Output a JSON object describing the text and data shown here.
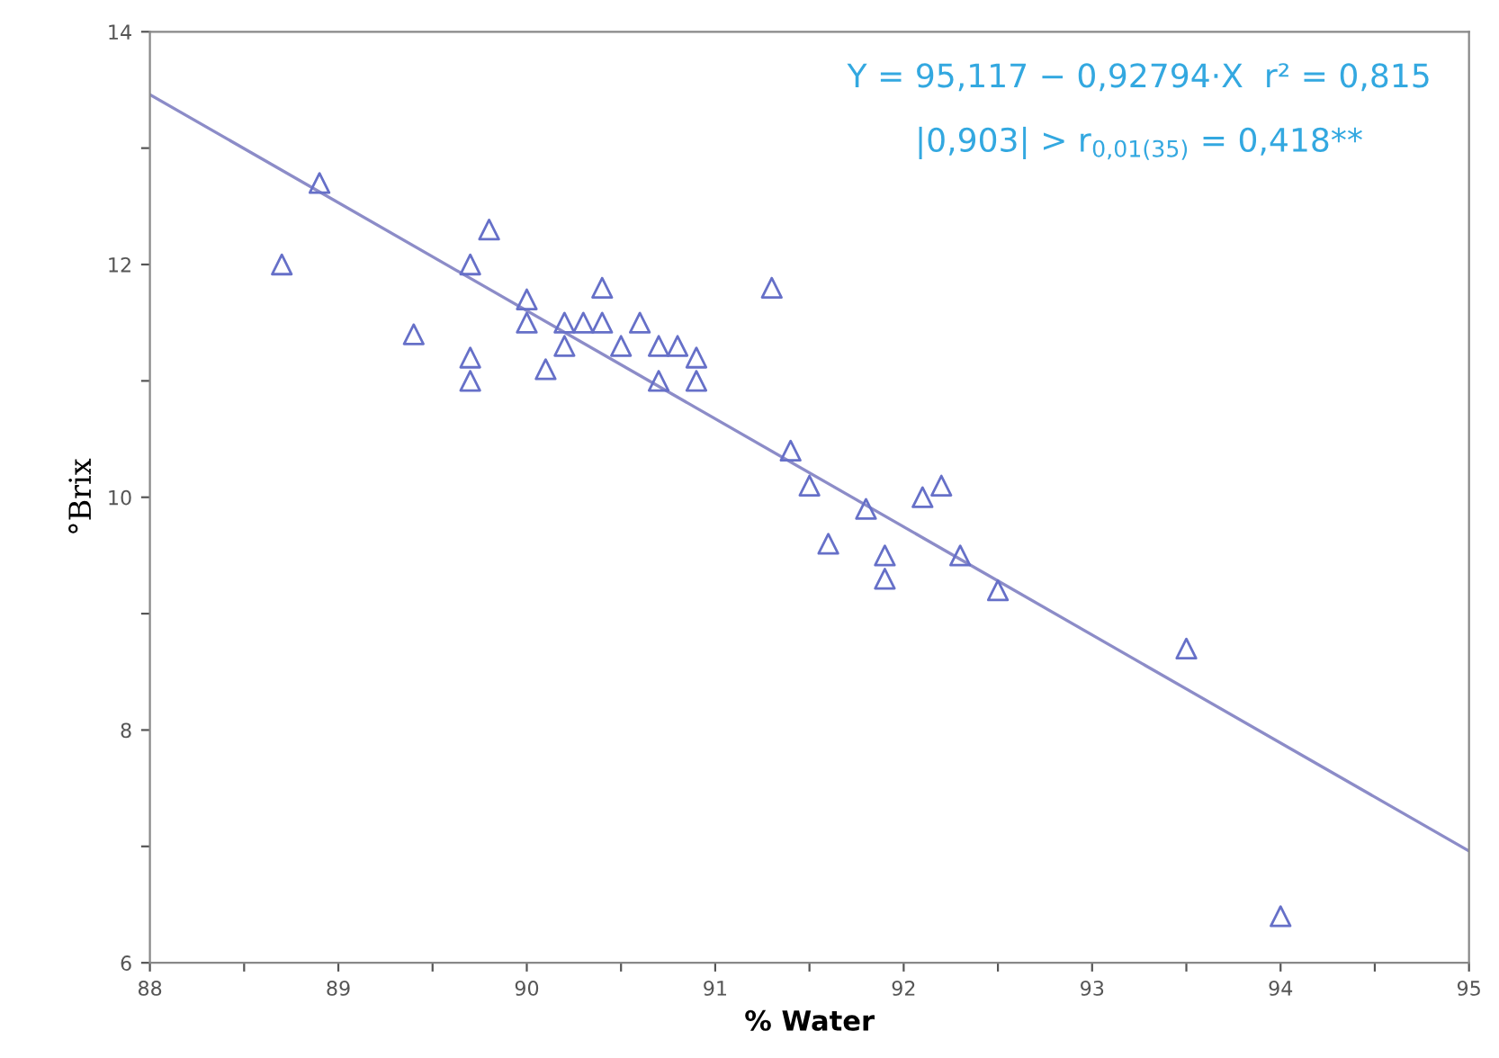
{
  "chart_data": {
    "type": "scatter",
    "xlabel": "% Water",
    "ylabel": "°Brix",
    "xlim": [
      88,
      95
    ],
    "ylim": [
      6,
      14
    ],
    "xticks": [
      88,
      {
        "value": 88.5,
        "label": null
      },
      89,
      {
        "value": 89.5,
        "label": null
      },
      90,
      {
        "value": 90.5,
        "label": null
      },
      91,
      {
        "value": 91.5,
        "label": null
      },
      92,
      {
        "value": 92.5,
        "label": null
      },
      93,
      {
        "value": 93.5,
        "label": null
      },
      94,
      {
        "value": 94.5,
        "label": null
      },
      95
    ],
    "yticks": [
      6,
      {
        "value": 7,
        "label": null
      },
      8,
      {
        "value": 9,
        "label": null
      },
      10,
      {
        "value": 11,
        "label": null
      },
      12,
      {
        "value": 13,
        "label": null
      },
      14
    ],
    "grid": false,
    "legend": false,
    "marker": "triangle",
    "annotations": [
      "Y = 95,117 − 0,92794·X  r² = 0,815",
      "|0,903| > r$_{0,01(35)}$ = 0,418**"
    ],
    "series": [
      {
        "color": "#6670c8",
        "x": [
          88.7,
          88.9,
          89.4,
          89.7,
          89.7,
          89.7,
          89.8,
          90.0,
          90.0,
          90.1,
          90.2,
          90.2,
          90.3,
          90.4,
          90.4,
          90.5,
          90.6,
          90.7,
          90.7,
          90.8,
          90.9,
          90.9,
          91.3,
          91.4,
          91.5,
          91.6,
          91.8,
          91.9,
          91.9,
          92.1,
          92.2,
          92.3,
          92.5,
          93.5,
          94.0
        ],
        "values": [
          12.0,
          12.7,
          11.4,
          12.0,
          11.2,
          11.0,
          12.3,
          11.7,
          11.5,
          11.1,
          11.5,
          11.3,
          11.5,
          11.8,
          11.5,
          11.3,
          11.5,
          11.3,
          11.0,
          11.3,
          11.2,
          11.0,
          11.8,
          10.4,
          10.1,
          9.6,
          9.9,
          9.5,
          9.3,
          10.0,
          10.1,
          9.5,
          9.2,
          8.7,
          6.4
        ]
      },
      {
        "type": "line",
        "color": "#8c8cc8",
        "marker": "none",
        "line_style": "solid",
        "x": [
          88,
          95
        ],
        "values": [
          13.46,
          6.96
        ]
      }
    ]
  }
}
